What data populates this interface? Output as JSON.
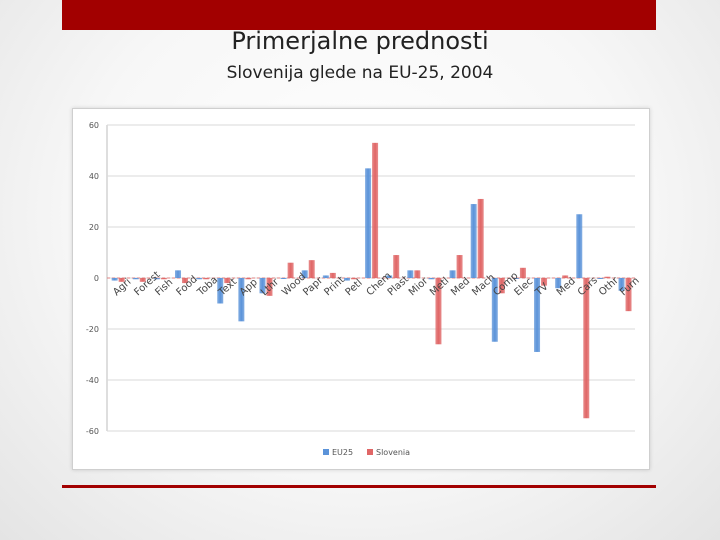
{
  "slide": {
    "title": "Primerjalne prednosti",
    "subtitle": "Slovenija glede na EU-25, 2004"
  },
  "colors": {
    "accent_bar": "#a20000",
    "series_eu25": "#5b93d9",
    "series_slovenia": "#e06666",
    "grid": "#d9d9d9"
  },
  "chart_data": {
    "type": "bar",
    "title": "",
    "xlabel": "",
    "ylabel": "",
    "ylim": [
      -60,
      60
    ],
    "yticks": [
      60,
      40,
      20,
      0,
      -20,
      -40,
      -60
    ],
    "grid": true,
    "legend_position": "bottom",
    "categories": [
      "Agri",
      "Forest",
      "Fish",
      "Food",
      "Toba",
      "Text",
      "App",
      "Lthr",
      "Wood",
      "Papr",
      "Print",
      "Petl",
      "Chem",
      "Plast",
      "Mior",
      "Metl",
      "Med",
      "Mach",
      "Comp",
      "Elec",
      "TV",
      "Med",
      "Cars",
      "Othr",
      "Furn"
    ],
    "series": [
      {
        "name": "EU25",
        "values": [
          -1,
          -0.5,
          -0.5,
          3,
          -0.5,
          -10,
          -17,
          -6,
          0,
          3,
          1,
          -1,
          43,
          1,
          3,
          -0.5,
          3,
          29,
          -25,
          0,
          -29,
          -4,
          25,
          0,
          -5
        ]
      },
      {
        "name": "Slovenia",
        "values": [
          -1.5,
          -1.5,
          -0.5,
          -2,
          -0.5,
          -2,
          -0.5,
          -7,
          6,
          7,
          2,
          -0.5,
          53,
          9,
          3,
          -26,
          9,
          31,
          -6,
          4,
          -3,
          1,
          -55,
          0.5,
          -13
        ]
      }
    ]
  }
}
